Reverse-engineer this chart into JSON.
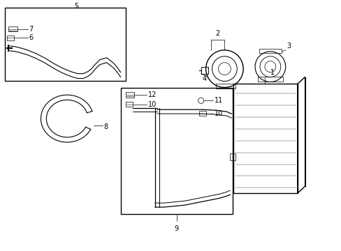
{
  "bg_color": "#ffffff",
  "line_color": "#000000",
  "line_width": 1.0,
  "thin_line": 0.5,
  "label_fontsize": 7,
  "fig_width": 4.89,
  "fig_height": 3.6,
  "dpi": 100
}
